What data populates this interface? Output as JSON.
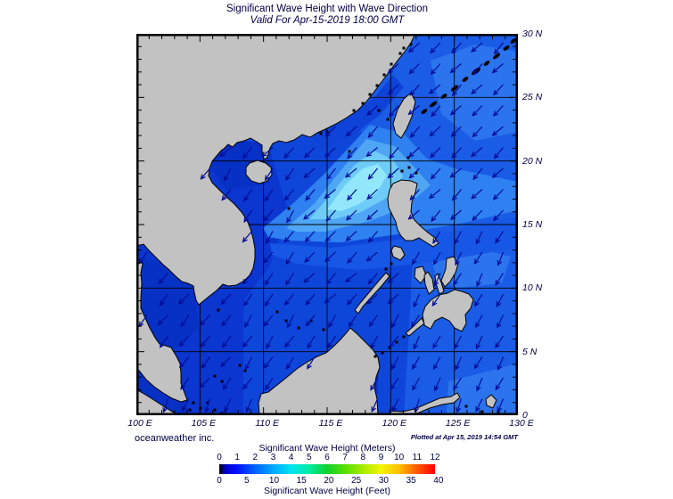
{
  "header": {
    "title": "Significant Wave Height with Wave Direction",
    "subtitle": "Valid For Apr-15-2019 18:00 GMT"
  },
  "footer": {
    "credit": "oceanweather inc.",
    "plotted": "Plotted at Apr 15, 2019 14:54 GMT"
  },
  "axes": {
    "lon_labels": [
      "100 E",
      "105 E",
      "110 E",
      "115 E",
      "120 E",
      "125 E",
      "130 E"
    ],
    "lat_labels": [
      "30 N",
      "25 N",
      "20 N",
      "15 N",
      "10 N",
      "5 N",
      "0"
    ]
  },
  "colorbar": {
    "title_meters": "Significant Wave Height (Meters)",
    "title_feet": "Significant Wave Height (Feet)",
    "meters_ticks": [
      "0",
      "1",
      "2",
      "3",
      "4",
      "5",
      "6",
      "7",
      "8",
      "9",
      "10",
      "11",
      "12"
    ],
    "feet_ticks": [
      "0",
      "5",
      "10",
      "15",
      "20",
      "25",
      "30",
      "35",
      "40"
    ],
    "meters_max": 12,
    "meters_per_foot": 0.3048,
    "stops": [
      {
        "p": 0,
        "c": "#000000"
      },
      {
        "p": 0.03,
        "c": "#0000cc"
      },
      {
        "p": 0.08,
        "c": "#0010ff"
      },
      {
        "p": 0.167,
        "c": "#0064ff"
      },
      {
        "p": 0.25,
        "c": "#00a8ff"
      },
      {
        "p": 0.333,
        "c": "#00e4f0"
      },
      {
        "p": 0.417,
        "c": "#00eca0"
      },
      {
        "p": 0.5,
        "c": "#10d030"
      },
      {
        "p": 0.583,
        "c": "#58e000"
      },
      {
        "p": 0.667,
        "c": "#a8ec00"
      },
      {
        "p": 0.75,
        "c": "#f4f400"
      },
      {
        "p": 0.833,
        "c": "#ffc000"
      },
      {
        "p": 0.917,
        "c": "#ff5800"
      },
      {
        "p": 1,
        "c": "#ff0000"
      }
    ]
  },
  "map_style": {
    "land": "#c2c2c2",
    "coast": "#000000",
    "ocean_base": "#0f46da",
    "grid": "#000000",
    "border": "#000000",
    "arrow": "#000d99",
    "arrow_spacing": 23.5,
    "arrow_length": 15.5,
    "shade_colors": {
      "ne_light": "#1a5ce6",
      "pac_patch": "#2c74ee",
      "dark_west": "#0b36d0",
      "gulf_dark": "#0730c4",
      "coast_dark": "#0e42d8",
      "band_mid": "#1757e6",
      "band1": "#2f80f0",
      "band2": "#4fa6f4",
      "band3": "#6fccf8",
      "band4": "#92e7fb"
    }
  },
  "text_color": "#000044",
  "chart_data": {
    "type": "heatmap",
    "title": "Significant Wave Height with Wave Direction",
    "valid_time": "Apr-15-2019 18:00 GMT",
    "plotted_time": "Apr 15, 2019 14:54 GMT",
    "lon_range_deg_e": [
      100,
      130
    ],
    "lat_range_deg_n": [
      0,
      30
    ],
    "grid_interval_deg": 5,
    "colorbar_meters": [
      0,
      1,
      2,
      3,
      4,
      5,
      6,
      7,
      8,
      9,
      10,
      11,
      12
    ],
    "colorbar_feet": [
      0,
      5,
      10,
      15,
      20,
      25,
      30,
      35,
      40
    ],
    "wave_direction": "arrows point predominantly toward the southwest/west (northeast monsoon swell)",
    "peak_wave_height_m_approx": 3,
    "peak_wave_region": "Luzon Strait between Taiwan and Luzon, extending west toward the central Vietnam coast"
  }
}
